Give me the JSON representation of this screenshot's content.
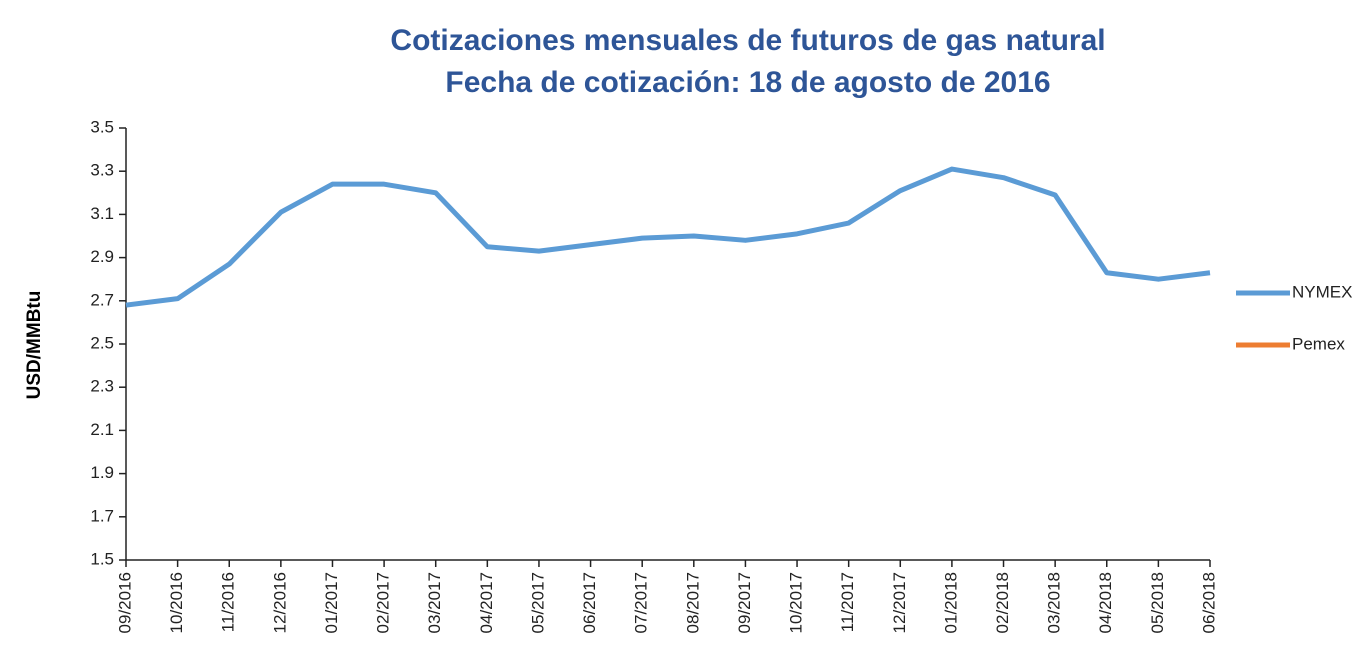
{
  "chart_data": {
    "type": "line",
    "title": [
      "Cotizaciones  mensuales de futuros de gas natural",
      "Fecha de cotización:  18 de agosto de 2016"
    ],
    "y_label": "USD/MMBtu",
    "categories": [
      "09/2016",
      "10/2016",
      "11/2016",
      "12/2016",
      "01/2017",
      "02/2017",
      "03/2017",
      "04/2017",
      "05/2017",
      "06/2017",
      "07/2017",
      "08/2017",
      "09/2017",
      "10/2017",
      "11/2017",
      "12/2017",
      "01/2018",
      "02/2018",
      "03/2018",
      "04/2018",
      "05/2018",
      "06/2018"
    ],
    "series": [
      {
        "name": "NYMEX",
        "color": "#5b9bd5",
        "values": [
          2.68,
          2.71,
          2.87,
          3.11,
          3.24,
          3.24,
          3.2,
          2.95,
          2.93,
          2.96,
          2.99,
          3.0,
          2.98,
          3.01,
          3.06,
          3.21,
          3.31,
          3.27,
          3.19,
          2.83,
          2.8,
          2.83
        ]
      },
      {
        "name": "Pemex",
        "color": "#ed7d31",
        "values": [
          null,
          null,
          null,
          null,
          null,
          null,
          null,
          null,
          null,
          null,
          null,
          null,
          null,
          null,
          null,
          null,
          null,
          null,
          null,
          null,
          null,
          null
        ]
      }
    ],
    "ylim": [
      1.5,
      3.5
    ],
    "yticks": [
      1.5,
      1.7,
      1.9,
      2.1,
      2.3,
      2.5,
      2.7,
      2.9,
      3.1,
      3.3,
      3.5
    ],
    "grid": false,
    "legend": "right"
  }
}
